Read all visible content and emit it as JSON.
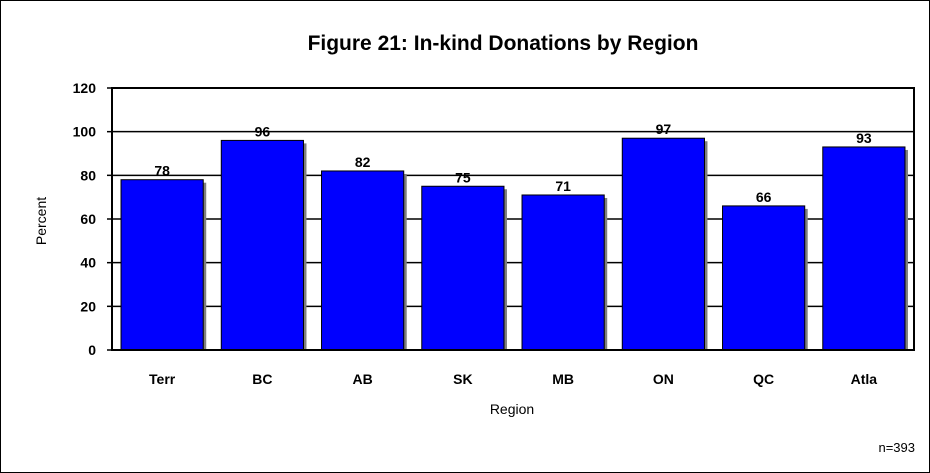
{
  "chart_data": {
    "type": "bar",
    "title": "Figure 21: In-kind Donations by Region",
    "xlabel": "Region",
    "ylabel": "Percent",
    "categories": [
      "Terr",
      "BC",
      "AB",
      "SK",
      "MB",
      "ON",
      "QC",
      "Atla"
    ],
    "values": [
      78,
      96,
      82,
      75,
      71,
      97,
      66,
      93
    ],
    "data_labels": [
      "78",
      "96",
      "82",
      "75",
      "71",
      "97",
      "66",
      "93"
    ],
    "ylim": [
      0,
      120
    ],
    "yticks": [
      "0",
      "20",
      "40",
      "60",
      "80",
      "100",
      "120"
    ],
    "grid": true,
    "legend": "none",
    "bar_color": "#0000FF",
    "note": "n=393"
  }
}
